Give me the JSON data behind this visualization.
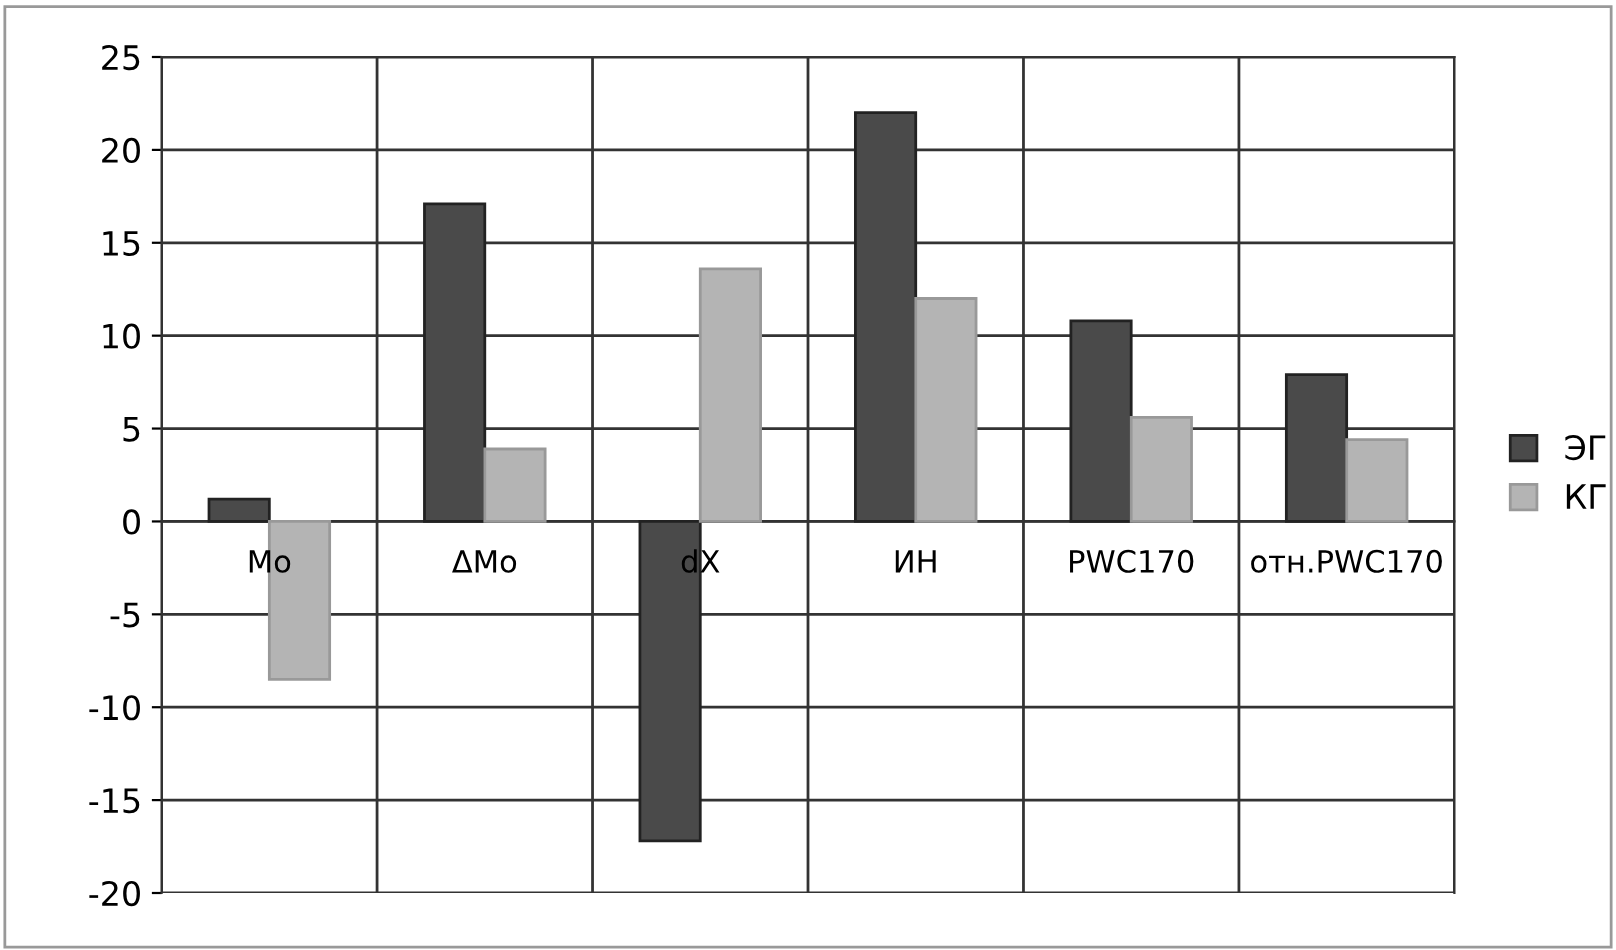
{
  "chart_data": {
    "type": "bar",
    "categories": [
      "Mo",
      "ΔMo",
      "dX",
      "ИН",
      "PWC170",
      "отн.PWC170"
    ],
    "series": [
      {
        "name": "ЭГ",
        "color": "#4a4a4a",
        "values": [
          1.2,
          17.1,
          -17.2,
          22.0,
          10.8,
          7.9
        ]
      },
      {
        "name": "КГ",
        "color": "#b4b4b4",
        "values": [
          -8.5,
          3.9,
          13.6,
          12.0,
          5.6,
          4.4
        ]
      }
    ],
    "ylim": [
      -20,
      25
    ],
    "yticks": [
      -20,
      -15,
      -10,
      -5,
      0,
      5,
      10,
      15,
      20,
      25
    ],
    "grid": true,
    "legend": "right"
  }
}
